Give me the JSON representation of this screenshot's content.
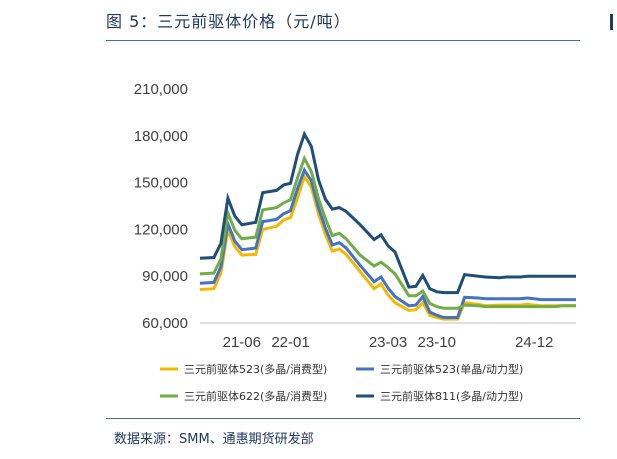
{
  "header": {
    "title": "图 5：三元前驱体价格（元/吨）"
  },
  "footer": {
    "source": "数据来源：SMM、通惠期货研发部"
  },
  "chart_data": {
    "type": "line",
    "title": "图 5：三元前驱体价格（元/吨）",
    "xlabel": "",
    "ylabel": "",
    "ylim": [
      60000,
      210000
    ],
    "y_ticks": [
      "60,000",
      "90,000",
      "120,000",
      "150,000",
      "180,000",
      "210,000"
    ],
    "y_tick_values": [
      60000,
      90000,
      120000,
      150000,
      180000,
      210000
    ],
    "x_tick_labels": [
      "21-06",
      "22-01",
      "23-03",
      "23-10",
      "24-12"
    ],
    "x_tick_dates": [
      "2021-06",
      "2022-01",
      "2023-03",
      "2023-10",
      "2024-12"
    ],
    "x_range": [
      "2020-12",
      "2025-06"
    ],
    "legend_position": "bottom",
    "grid": false,
    "x": [
      "2020-12",
      "2021-02",
      "2021-03",
      "2021-04",
      "2021-05",
      "2021-06",
      "2021-08",
      "2021-09",
      "2021-11",
      "2021-12",
      "2022-01",
      "2022-02",
      "2022-03",
      "2022-04",
      "2022-05",
      "2022-06",
      "2022-07",
      "2022-08",
      "2022-09",
      "2022-11",
      "2023-01",
      "2023-02",
      "2023-03",
      "2023-04",
      "2023-06",
      "2023-07",
      "2023-08",
      "2023-09",
      "2023-10",
      "2023-11",
      "2023-12",
      "2024-01",
      "2024-02",
      "2024-04",
      "2024-05",
      "2024-07",
      "2024-08",
      "2024-10",
      "2024-11",
      "2024-12",
      "2025-01",
      "2025-03",
      "2025-04",
      "2025-06"
    ],
    "series": [
      {
        "name": "三元前驱体523(多晶/消费型)",
        "color": "#f5b800",
        "values": [
          81500,
          82000,
          92000,
          119500,
          109000,
          103500,
          104000,
          120000,
          122000,
          126000,
          127500,
          140000,
          154000,
          147000,
          130000,
          117000,
          106000,
          107500,
          104000,
          93000,
          82000,
          85000,
          78000,
          73000,
          68000,
          68500,
          73000,
          65000,
          63500,
          62500,
          62500,
          62500,
          73000,
          72000,
          71000,
          71500,
          71500,
          71500,
          72000,
          71500,
          71000,
          71000,
          71000,
          71000
        ]
      },
      {
        "name": "三元前驱体523(单晶/动力型)",
        "color": "#4472c4",
        "values": [
          85500,
          86000,
          96000,
          123500,
          112500,
          107000,
          108000,
          125000,
          126500,
          130000,
          132000,
          146000,
          158000,
          151000,
          134000,
          121000,
          110000,
          111500,
          108000,
          97000,
          86500,
          89500,
          82500,
          77000,
          71000,
          71500,
          77000,
          67000,
          65000,
          63500,
          63500,
          63500,
          76500,
          76000,
          75500,
          75500,
          75500,
          75500,
          76000,
          75500,
          75000,
          75000,
          75000,
          75000
        ]
      },
      {
        "name": "三元前驱体622(多晶/消费型)",
        "color": "#70ad47",
        "values": [
          91500,
          92000,
          101000,
          130500,
          119500,
          114000,
          115000,
          132500,
          134000,
          137000,
          139000,
          153000,
          165500,
          157000,
          140000,
          127000,
          116000,
          117500,
          114000,
          103500,
          96500,
          99000,
          95500,
          91500,
          77500,
          77500,
          80500,
          72500,
          70500,
          69500,
          69500,
          69500,
          71500,
          71000,
          70500,
          70500,
          70500,
          70500,
          70500,
          70500,
          70500,
          70500,
          71000,
          71000
        ]
      },
      {
        "name": "三元前驱体811(多晶/动力型)",
        "color": "#1f4e79",
        "values": [
          101500,
          102000,
          111000,
          140000,
          128500,
          123000,
          124500,
          143500,
          145000,
          148500,
          149500,
          168000,
          181000,
          173000,
          152000,
          139500,
          133000,
          134000,
          131500,
          123000,
          113500,
          116500,
          109500,
          105500,
          83000,
          83500,
          90500,
          82000,
          80000,
          79500,
          79500,
          79500,
          91000,
          90000,
          89500,
          89000,
          89500,
          89500,
          90000,
          90000,
          90000,
          90000,
          90000,
          90000
        ]
      }
    ]
  }
}
